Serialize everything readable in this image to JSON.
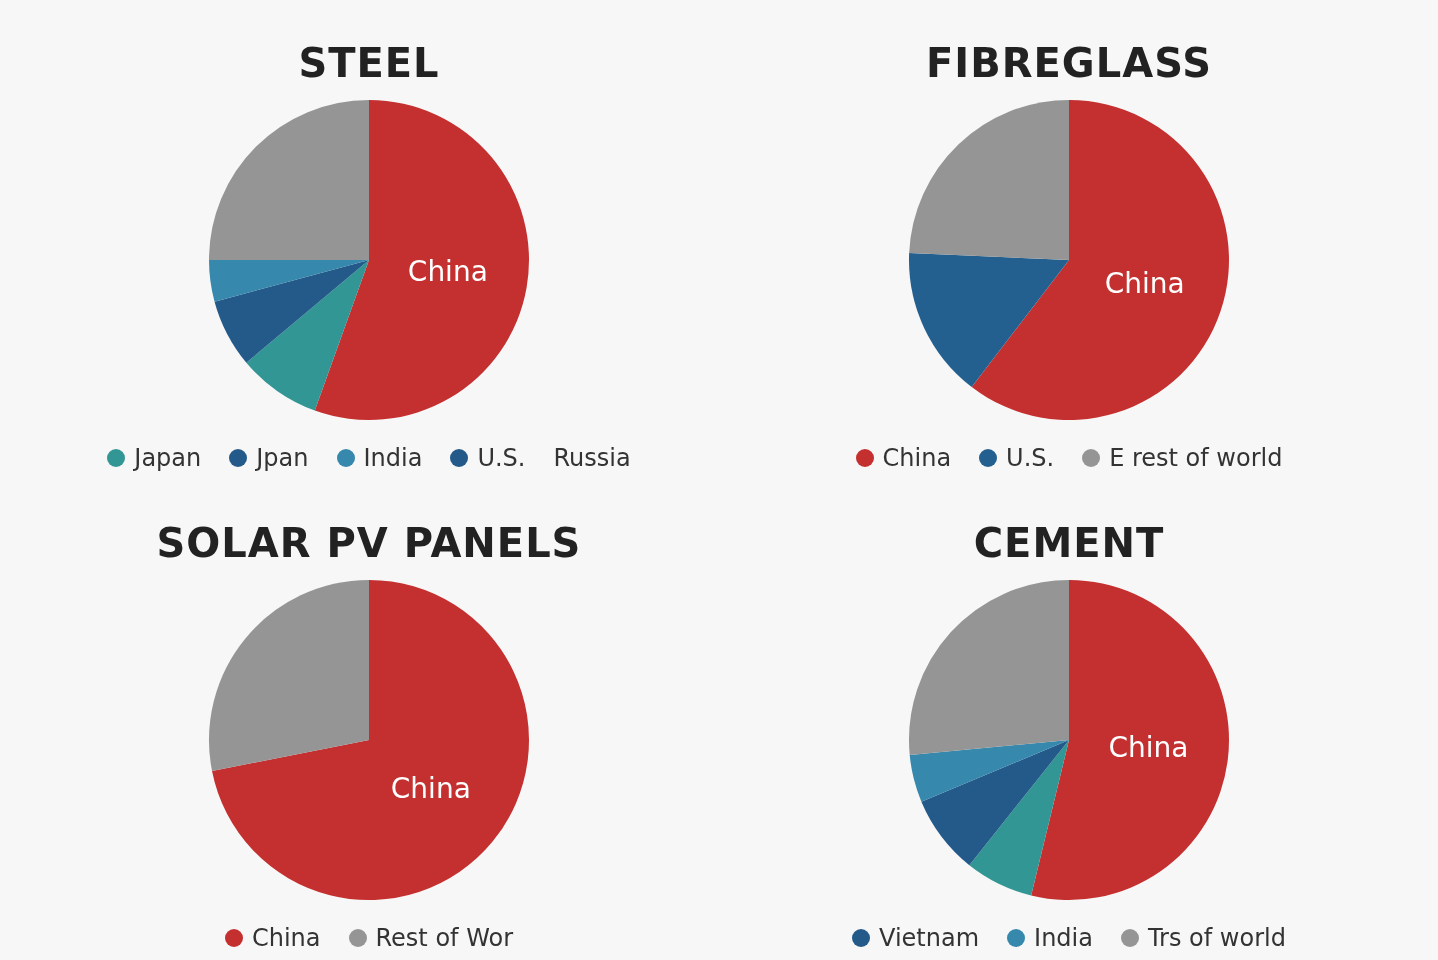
{
  "chart_data": [
    {
      "type": "pie",
      "title": "STEEL",
      "categories": [
        null,
        "Japan",
        "Jpan",
        "India",
        "U.S.",
        null
      ],
      "values": [
        55.5,
        8.4,
        6.9,
        4.2,
        0,
        25
      ],
      "colors": [
        "#c4302f",
        "#329694",
        "#235a8a",
        "#3688ad",
        "#235a8a",
        "#959595"
      ],
      "annotations": [
        "China",
        "Russia"
      ],
      "legend": "bottom"
    },
    {
      "type": "pie",
      "title": "FIBREGLASS",
      "categories": [
        "China",
        "U.S.",
        "E rest of world"
      ],
      "values": [
        60.4,
        15.3,
        24.3
      ],
      "colors": [
        "#c4302f",
        "#24608f",
        "#959595"
      ],
      "annotations": [
        "China"
      ],
      "legend": "bottom"
    },
    {
      "type": "pie",
      "title": "SOLAR PV PANELS",
      "categories": [
        "China",
        "Rest of Wor"
      ],
      "values": [
        71.9,
        28.1
      ],
      "colors": [
        "#c4302f",
        "#959595"
      ],
      "annotations": [
        "China"
      ],
      "legend": "bottom"
    },
    {
      "type": "pie",
      "title": "CEMENT",
      "categories": [
        null,
        null,
        "Vietnam",
        "India",
        "Trs of world"
      ],
      "values": [
        53.8,
        6.9,
        8.0,
        4.8,
        26.5
      ],
      "colors": [
        "#c4302f",
        "#329694",
        "#235a8a",
        "#3688ad",
        "#959595"
      ],
      "annotations": [
        "China"
      ],
      "legend": "bottom"
    }
  ]
}
